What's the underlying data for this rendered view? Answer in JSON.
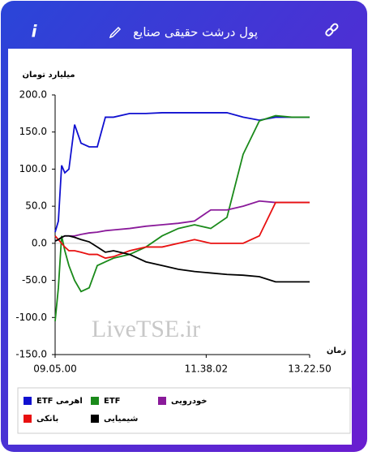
{
  "header": {
    "title": "پول درشت حقیقی صنایع",
    "info_label": "i"
  },
  "chart_data": {
    "type": "line",
    "y_label": "میلیارد تومان",
    "x_label": "زمان",
    "watermark": "LiveTSE.ir",
    "x": [
      9.083,
      9.138,
      9.193,
      9.247,
      9.316,
      9.412,
      9.521,
      9.658,
      9.795,
      9.932,
      10.069,
      10.342,
      10.616,
      10.89,
      11.164,
      11.437,
      11.711,
      11.985,
      12.258,
      12.532,
      12.806,
      13.079,
      13.381
    ],
    "xlim": [
      9.083,
      13.381
    ],
    "xticks": [
      {
        "value": 9.083,
        "label": "09.05.00"
      },
      {
        "value": 11.634,
        "label": "11.38.02"
      },
      {
        "value": 13.381,
        "label": "13.22.50"
      }
    ],
    "ylim": [
      -150,
      200
    ],
    "yticks": [
      {
        "value": 200,
        "label": "200.0"
      },
      {
        "value": 150,
        "label": "150.0"
      },
      {
        "value": 100,
        "label": "100.0"
      },
      {
        "value": 50,
        "label": "50.0"
      },
      {
        "value": 0,
        "label": "0.0"
      },
      {
        "value": -50,
        "label": "-50.0"
      },
      {
        "value": -100,
        "label": "-100.0"
      },
      {
        "value": -150,
        "label": "-150.0"
      }
    ],
    "grid": false,
    "series": [
      {
        "name": "ETF اهرمی",
        "color": "#1010d0",
        "values": [
          15,
          30,
          105,
          95,
          100,
          160,
          135,
          130,
          130,
          170,
          170,
          175,
          175,
          176,
          176,
          176,
          176,
          176,
          170,
          166,
          170,
          170,
          170
        ]
      },
      {
        "name": "ETF",
        "color": "#1a8a1a",
        "values": [
          -105,
          -60,
          10,
          -10,
          -30,
          -50,
          -65,
          -60,
          -30,
          -25,
          -20,
          -15,
          -5,
          10,
          20,
          25,
          20,
          35,
          120,
          165,
          172,
          170,
          170
        ]
      },
      {
        "name": "خودرویی",
        "color": "#8a1a9a",
        "values": [
          3,
          5,
          8,
          10,
          10,
          10,
          12,
          14,
          15,
          17,
          18,
          20,
          23,
          25,
          27,
          30,
          45,
          45,
          50,
          57,
          55,
          55,
          55
        ]
      },
      {
        "name": "بانکی",
        "color": "#e81010",
        "values": [
          10,
          5,
          0,
          -5,
          -10,
          -10,
          -12,
          -15,
          -15,
          -20,
          -18,
          -10,
          -5,
          -5,
          0,
          5,
          0,
          0,
          0,
          10,
          55,
          55,
          55
        ]
      },
      {
        "name": "شیمیایی",
        "color": "#000000",
        "values": [
          3,
          5,
          8,
          10,
          10,
          8,
          5,
          2,
          -5,
          -12,
          -10,
          -15,
          -25,
          -30,
          -35,
          -38,
          -40,
          -42,
          -43,
          -45,
          -52,
          -52,
          -52
        ]
      }
    ]
  }
}
